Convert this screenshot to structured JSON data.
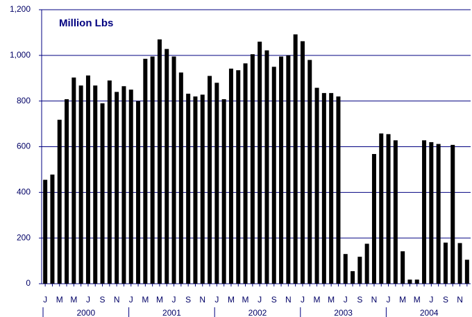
{
  "chart_data": {
    "type": "bar",
    "title": "Million Lbs",
    "categories": [
      "J",
      null,
      "M",
      null,
      "M",
      null,
      "J",
      null,
      "S",
      null,
      "N",
      null,
      "J",
      null,
      "M",
      null,
      "M",
      null,
      "J",
      null,
      "S",
      null,
      "N",
      null,
      "J",
      null,
      "M",
      null,
      "M",
      null,
      "J",
      null,
      "S",
      null,
      "N",
      null,
      "J",
      null,
      "M",
      null,
      "M",
      null,
      "J",
      null,
      "S",
      null,
      "N",
      null,
      "J",
      null,
      "M",
      null,
      "M",
      null,
      "J",
      null,
      "S",
      null,
      "N",
      null
    ],
    "years": [
      "2000",
      "2001",
      "2002",
      "2003",
      "2004"
    ],
    "values": [
      455,
      478,
      718,
      808,
      903,
      868,
      912,
      868,
      790,
      890,
      840,
      865,
      850,
      800,
      985,
      995,
      1070,
      1028,
      995,
      925,
      832,
      820,
      828,
      910,
      880,
      808,
      942,
      935,
      965,
      1005,
      1060,
      1022,
      950,
      995,
      1000,
      1092,
      1062,
      980,
      858,
      835,
      835,
      820,
      130,
      55,
      118,
      175,
      568,
      658,
      655,
      628,
      142,
      18,
      18,
      628,
      620,
      612,
      180,
      608,
      178,
      105
    ],
    "color": "#000000",
    "ylim": [
      0,
      1200
    ],
    "yticks": [
      0,
      200,
      400,
      600,
      {
        "value": 800,
        "label": "800"
      },
      {
        "value": 1000,
        "label": "1,000"
      },
      {
        "value": 1200,
        "label": "1,200"
      }
    ],
    "grid": true
  }
}
